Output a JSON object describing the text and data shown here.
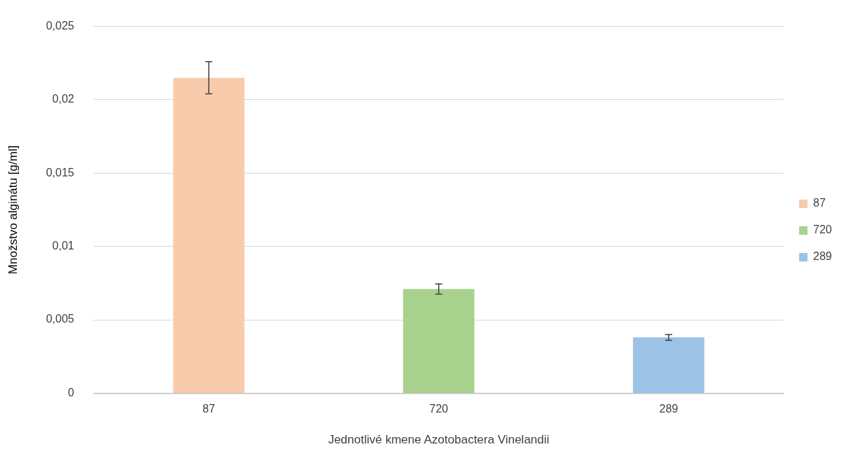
{
  "chart_data": {
    "type": "bar",
    "xlabel": "Jednotlivé kmene Azotobactera Vinelandii",
    "ylabel": "Množstvo alginátu [g/ml]",
    "categories": [
      "87",
      "720",
      "289"
    ],
    "series": [
      {
        "name": "87",
        "color": "#f8cbad",
        "values": [
          0.0215,
          null,
          null
        ],
        "errors": [
          0.0011,
          null,
          null
        ]
      },
      {
        "name": "720",
        "color": "#a9d18e",
        "values": [
          null,
          0.0071,
          null
        ],
        "errors": [
          null,
          0.00035,
          null
        ]
      },
      {
        "name": "289",
        "color": "#9dc3e6",
        "values": [
          null,
          null,
          0.0038
        ],
        "errors": [
          null,
          null,
          0.0002
        ]
      }
    ],
    "ylim": [
      0,
      0.025
    ],
    "yticks": [
      {
        "value": 0,
        "label": "0"
      },
      {
        "value": 0.005,
        "label": "0,005"
      },
      {
        "value": 0.01,
        "label": "0,01"
      },
      {
        "value": 0.015,
        "label": "0,015"
      },
      {
        "value": 0.02,
        "label": "0,02"
      },
      {
        "value": 0.025,
        "label": "0,025"
      }
    ],
    "grid": "y",
    "legend": "right"
  }
}
